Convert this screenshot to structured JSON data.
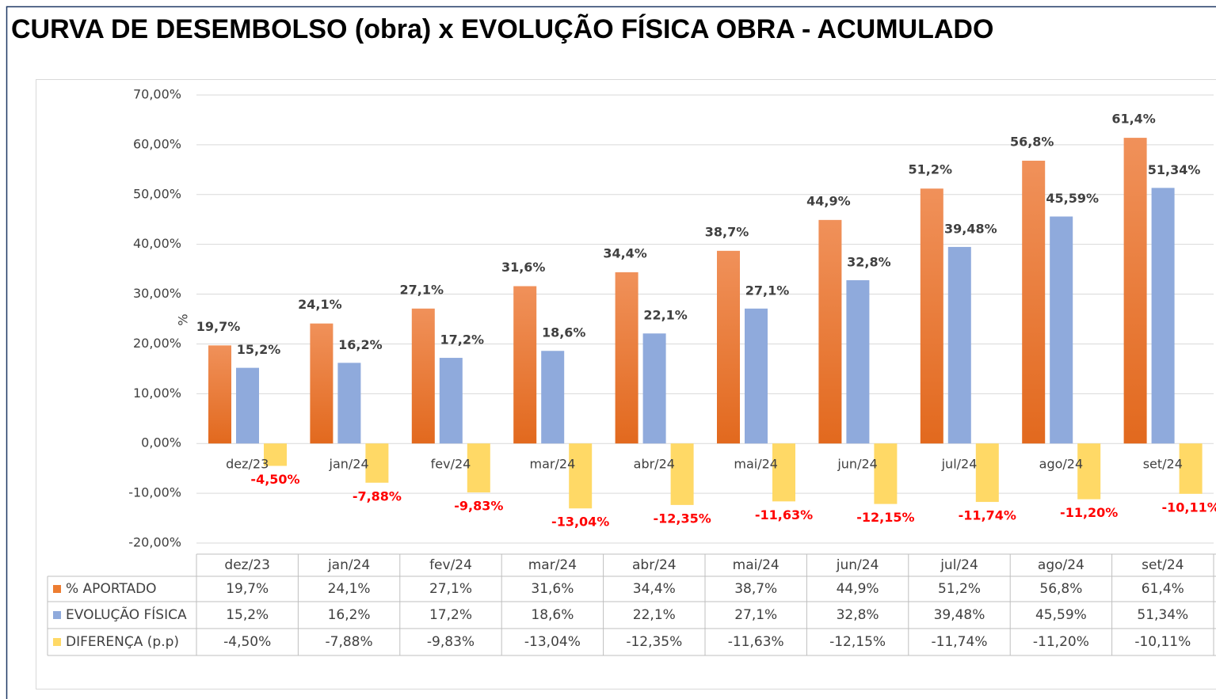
{
  "chart_data": {
    "type": "bar",
    "title": "CURVA DE DESEMBOLSO (obra) x EVOLUÇÃO FÍSICA OBRA - ACUMULADO",
    "y_label": "%",
    "categories": [
      "dez/23",
      "jan/24",
      "fev/24",
      "mar/24",
      "abr/24",
      "mai/24",
      "jun/24",
      "jul/24",
      "ago/24",
      "set/24"
    ],
    "series": [
      {
        "name": "% APORTADO",
        "color": "#ed7d31",
        "values": [
          19.7,
          24.1,
          27.1,
          31.6,
          34.4,
          38.7,
          44.9,
          51.2,
          56.8,
          61.4
        ],
        "value_labels": [
          "19,7%",
          "24,1%",
          "27,1%",
          "31,6%",
          "34,4%",
          "38,7%",
          "44,9%",
          "51,2%",
          "56,8%",
          "61,4%"
        ]
      },
      {
        "name": "EVOLUÇÃO FÍSICA",
        "color": "#8faadc",
        "values": [
          15.2,
          16.2,
          17.2,
          18.6,
          22.1,
          27.1,
          32.8,
          39.48,
          45.59,
          51.34
        ],
        "value_labels": [
          "15,2%",
          "16,2%",
          "17,2%",
          "18,6%",
          "22,1%",
          "27,1%",
          "32,8%",
          "39,48%",
          "45,59%",
          "51,34%"
        ]
      },
      {
        "name": "DIFERENÇA (p.p)",
        "color": "#ffd966",
        "values": [
          -4.5,
          -7.88,
          -9.83,
          -13.04,
          -12.35,
          -11.63,
          -12.15,
          -11.74,
          -11.2,
          -10.11
        ],
        "value_labels": [
          "-4,50%",
          "-7,88%",
          "-9,83%",
          "-13,04%",
          "-12,35%",
          "-11,63%",
          "-12,15%",
          "-11,74%",
          "-11,20%",
          "-10,11%"
        ]
      }
    ],
    "ylim": [
      -20,
      70
    ],
    "yticks": [
      {
        "value": -20,
        "label": "-20,00%"
      },
      {
        "value": -10,
        "label": "-10,00%"
      },
      {
        "value": 0,
        "label": "0,00%"
      },
      {
        "value": 10,
        "label": "10,00%"
      },
      {
        "value": 20,
        "label": "20,00%"
      },
      {
        "value": 30,
        "label": "30,00%"
      },
      {
        "value": 40,
        "label": "40,00%"
      },
      {
        "value": 50,
        "label": "50,00%"
      },
      {
        "value": 60,
        "label": "60,00%"
      },
      {
        "value": 70,
        "label": "70,00%"
      }
    ],
    "grid": true
  }
}
